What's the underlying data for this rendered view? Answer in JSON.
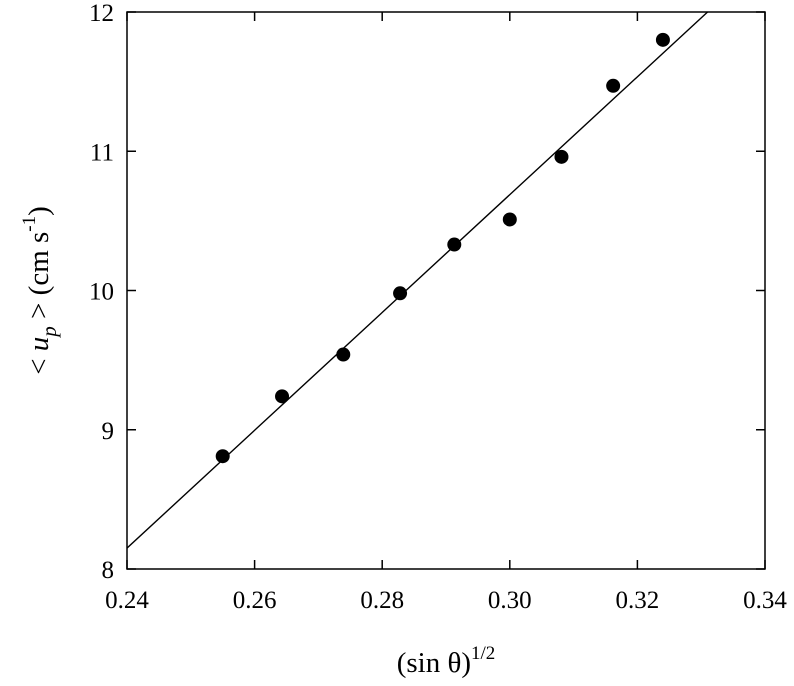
{
  "chart_data": {
    "type": "scatter",
    "title": "",
    "xlabel": {
      "main": "(sin θ)",
      "superscript": "1/2"
    },
    "ylabel": {
      "prefix": "< ",
      "variable": "u",
      "subscript": "p",
      "suffix": " >  (cm s",
      "superscript": "-1",
      "closing": ")"
    },
    "xlim": [
      0.24,
      0.34
    ],
    "ylim": [
      8,
      12
    ],
    "xticks": [
      0.24,
      0.26,
      0.28,
      0.3,
      0.32,
      0.34
    ],
    "xtick_labels": [
      "0.24",
      "0.26",
      "0.28",
      "0.30",
      "0.32",
      "0.34"
    ],
    "yticks": [
      8,
      9,
      10,
      11,
      12
    ],
    "ytick_labels": [
      "8",
      "9",
      "10",
      "11",
      "12"
    ],
    "grid": false,
    "legend": "none",
    "series": [
      {
        "type": "scatter",
        "x": [
          0.255,
          0.2643,
          0.2739,
          0.2828,
          0.2913,
          0.3,
          0.3081,
          0.3162,
          0.324
        ],
        "y": [
          8.81,
          9.24,
          9.54,
          9.98,
          10.33,
          10.51,
          10.96,
          11.47,
          11.8
        ],
        "color": "#000000"
      },
      {
        "type": "line",
        "x": [
          0.24,
          0.331
        ],
        "y": [
          8.15,
          12.0
        ],
        "color": "#000000"
      }
    ]
  }
}
